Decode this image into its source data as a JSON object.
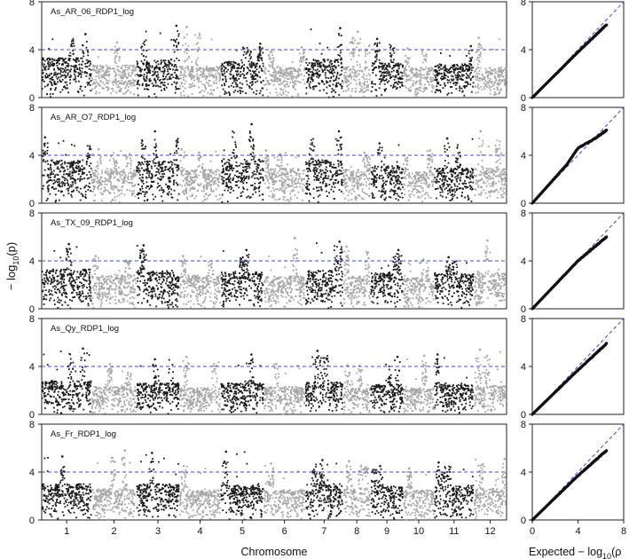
{
  "figure": {
    "ylabel": "− log₁₀(p)",
    "ylabel_parts": {
      "pre": "− log",
      "sub": "10",
      "post": "(p)"
    },
    "xlabel": "Chromosome",
    "qq_xlabel": "Expected − log₁₀(ρ",
    "qq_xlabel_parts": {
      "pre": "Expected − log",
      "sub": "10",
      "post": "(ρ"
    },
    "colors": {
      "dark": "#1a1a1a",
      "light": "#a6a6a6",
      "threshold": "#4444dd",
      "qq_reference": "#4444dd",
      "qq_points": "#111111",
      "frame": "#222222"
    }
  },
  "chart_data": [
    {
      "type": "scatter",
      "kind": "manhattan",
      "title": "As_AR_06_RDP1_log",
      "xlabel": "Chromosome",
      "ylabel": "− log10(p)",
      "categories": [
        "1",
        "2",
        "3",
        "4",
        "5",
        "6",
        "7",
        "8",
        "9",
        "10",
        "11",
        "12"
      ],
      "ylim": [
        0,
        8
      ],
      "yticks": [
        0,
        4,
        8
      ],
      "threshold": 4,
      "chromosome_base": [
        3.3,
        2.7,
        3.1,
        2.6,
        3.0,
        2.5,
        3.2,
        2.6,
        2.9,
        2.5,
        2.8,
        2.5
      ],
      "chromosome_peak": [
        5.3,
        4.6,
        6.0,
        5.9,
        4.5,
        4.2,
        5.8,
        5.5,
        4.9,
        4.1,
        4.3,
        5.0
      ],
      "qq": {
        "xlim": [
          0,
          8
        ],
        "ylim": [
          0,
          8
        ],
        "yticks": [
          0,
          4,
          8
        ],
        "max_expected": 6.5,
        "max_observed": 6.1,
        "curve": [
          [
            0,
            0
          ],
          [
            4,
            3.8
          ],
          [
            6.5,
            6.1
          ]
        ]
      }
    },
    {
      "type": "scatter",
      "kind": "manhattan",
      "title": "As_AR_O7_RDP1_log",
      "xlabel": "Chromosome",
      "ylabel": "− log10(p)",
      "categories": [
        "1",
        "2",
        "3",
        "4",
        "5",
        "6",
        "7",
        "8",
        "9",
        "10",
        "11",
        "12"
      ],
      "ylim": [
        0,
        8
      ],
      "yticks": [
        0,
        4,
        8
      ],
      "threshold": 4,
      "chromosome_base": [
        3.6,
        2.8,
        3.5,
        2.8,
        3.7,
        2.9,
        3.6,
        2.8,
        3.1,
        2.6,
        2.9,
        2.9
      ],
      "chromosome_peak": [
        5.5,
        4.5,
        6.0,
        4.5,
        6.6,
        4.4,
        6.0,
        4.2,
        5.0,
        4.4,
        5.4,
        6.0
      ],
      "qq": {
        "xlim": [
          0,
          8
        ],
        "ylim": [
          0,
          8
        ],
        "yticks": [
          0,
          4,
          8
        ],
        "max_expected": 6.5,
        "max_observed": 6.1,
        "curve": [
          [
            0,
            0
          ],
          [
            3,
            3.2
          ],
          [
            4,
            4.6
          ],
          [
            5.5,
            5.4
          ],
          [
            6.5,
            6.1
          ]
        ]
      }
    },
    {
      "type": "scatter",
      "kind": "manhattan",
      "title": "As_TX_09_RDP1_log",
      "xlabel": "Chromosome",
      "ylabel": "− log10(p)",
      "categories": [
        "1",
        "2",
        "3",
        "4",
        "5",
        "6",
        "7",
        "8",
        "9",
        "10",
        "11",
        "12"
      ],
      "ylim": [
        0,
        8
      ],
      "yticks": [
        0,
        4,
        8
      ],
      "threshold": 4,
      "chromosome_base": [
        3.3,
        2.8,
        3.2,
        2.8,
        3.1,
        2.7,
        3.2,
        2.7,
        3.0,
        2.6,
        2.9,
        3.0
      ],
      "chromosome_peak": [
        5.4,
        4.4,
        5.3,
        4.4,
        4.9,
        5.9,
        5.6,
        5.2,
        4.9,
        4.1,
        4.3,
        5.7
      ],
      "qq": {
        "xlim": [
          0,
          8
        ],
        "ylim": [
          0,
          8
        ],
        "yticks": [
          0,
          4,
          8
        ],
        "max_expected": 6.5,
        "max_observed": 6.0,
        "curve": [
          [
            0,
            0
          ],
          [
            4,
            4.0
          ],
          [
            6.5,
            6.0
          ]
        ]
      }
    },
    {
      "type": "scatter",
      "kind": "manhattan",
      "title": "As_Qy_RDP1_log",
      "xlabel": "Chromosome",
      "ylabel": "− log10(p)",
      "categories": [
        "1",
        "2",
        "3",
        "4",
        "5",
        "6",
        "7",
        "8",
        "9",
        "10",
        "11",
        "12"
      ],
      "ylim": [
        0,
        8
      ],
      "yticks": [
        0,
        4,
        8
      ],
      "threshold": 4,
      "chromosome_base": [
        2.8,
        2.3,
        2.6,
        2.2,
        2.6,
        2.3,
        2.7,
        2.2,
        2.5,
        2.2,
        2.5,
        2.4
      ],
      "chromosome_peak": [
        5.5,
        4.2,
        4.6,
        4.8,
        5.0,
        4.2,
        5.3,
        4.1,
        4.8,
        4.9,
        5.0,
        5.4
      ],
      "qq": {
        "xlim": [
          0,
          8
        ],
        "ylim": [
          0,
          8
        ],
        "yticks": [
          0,
          4,
          8
        ],
        "max_expected": 6.5,
        "max_observed": 5.9,
        "curve": [
          [
            0,
            0
          ],
          [
            4,
            3.7
          ],
          [
            6.5,
            5.9
          ]
        ]
      }
    },
    {
      "type": "scatter",
      "kind": "manhattan",
      "title": "As_Fr_RDP1_log",
      "xlabel": "Chromosome",
      "ylabel": "− log10(p)",
      "categories": [
        "1",
        "2",
        "3",
        "4",
        "5",
        "6",
        "7",
        "8",
        "9",
        "10",
        "11",
        "12"
      ],
      "ylim": [
        0,
        8
      ],
      "yticks": [
        0,
        4,
        8
      ],
      "threshold": 4,
      "chromosome_base": [
        3.0,
        2.6,
        3.0,
        2.5,
        2.9,
        2.5,
        3.0,
        2.6,
        2.8,
        2.5,
        2.9,
        2.6
      ],
      "chromosome_peak": [
        5.3,
        5.8,
        5.6,
        4.5,
        5.7,
        4.7,
        5.0,
        4.9,
        4.5,
        4.3,
        4.8,
        5.1
      ],
      "qq": {
        "xlim": [
          0,
          8
        ],
        "ylim": [
          0,
          8
        ],
        "yticks": [
          0,
          4,
          8
        ],
        "max_expected": 6.5,
        "max_observed": 5.8,
        "curve": [
          [
            0,
            0
          ],
          [
            4,
            3.7
          ],
          [
            6.5,
            5.8
          ]
        ]
      }
    }
  ]
}
